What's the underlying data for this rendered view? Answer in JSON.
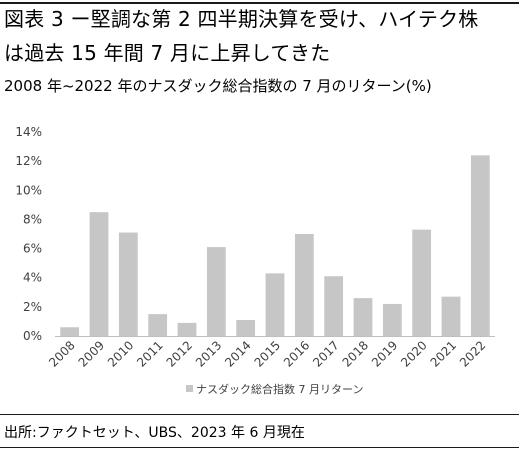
{
  "header": {
    "title_line1": "図表 3 ー堅調な第 2 四半期決算を受け、ハイテク株",
    "title_line2": "は過去 15 年間 7 月に上昇してきた",
    "subtitle": "2008 年~2022 年のナスダック総合指数の 7 月のリターン(%)"
  },
  "chart_data": {
    "type": "bar",
    "categories": [
      "2008",
      "2009",
      "2010",
      "2011",
      "2012",
      "2013",
      "2014",
      "2015",
      "2016",
      "2017",
      "2018",
      "2019",
      "2020",
      "2021",
      "2022"
    ],
    "series": [
      {
        "name": "ナスダック総合指数 7 月リターン",
        "values": [
          0.6,
          8.5,
          7.1,
          1.5,
          0.9,
          6.1,
          1.1,
          4.3,
          7.0,
          4.1,
          2.6,
          2.2,
          7.3,
          2.7,
          12.4
        ]
      }
    ],
    "y_ticks": [
      "0%",
      "2%",
      "4%",
      "6%",
      "8%",
      "10%",
      "12%",
      "14%"
    ],
    "ylim": [
      0,
      14
    ],
    "grid": false,
    "legend_position": "bottom",
    "bar_color": "#c6c6c6",
    "axis_color": "#bfbfbf"
  },
  "footer": {
    "source": "出所:ファクトセット、UBS、2023 年 6 月現在"
  }
}
